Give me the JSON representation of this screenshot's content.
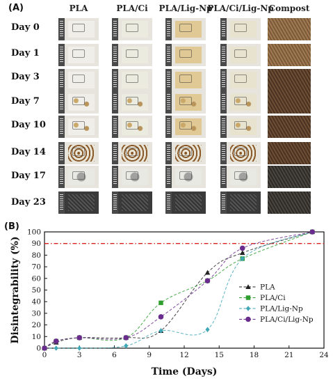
{
  "panel_a": {
    "label": "(A)",
    "columns": [
      "PLA",
      "PLA/Ci",
      "PLA/Lig-Np",
      "PLA/Ci/Lig-Np",
      "Compost"
    ],
    "days": [
      "Day 0",
      "Day 1",
      "Day 3",
      "Day 7",
      "Day 10",
      "Day 14",
      "Day 17",
      "Day 23"
    ]
  },
  "panel_b": {
    "label": "(B)"
  },
  "colors": {
    "PLA": "#222222",
    "PLA/Ci": "#2e9e2e",
    "PLA/Lig-Np": "#3fa7b5",
    "PLA/Ci/Lig-Np": "#6a2c8c",
    "threshold": "#dd2222"
  },
  "chart_data": {
    "type": "line",
    "xlabel": "Time (Days)",
    "ylabel": "Disintegrability (%)",
    "xlim": [
      0,
      24
    ],
    "ylim": [
      0,
      100
    ],
    "xticks": [
      0,
      3,
      6,
      9,
      12,
      15,
      18,
      21,
      24
    ],
    "yticks": [
      0,
      10,
      20,
      30,
      40,
      50,
      60,
      70,
      80,
      90,
      100
    ],
    "threshold": 90,
    "legend_position": "center-right",
    "series": [
      {
        "name": "PLA",
        "marker": "triangle",
        "x": [
          0,
          1,
          3,
          7,
          10,
          14,
          17,
          23
        ],
        "y": [
          0,
          5,
          9,
          9,
          15,
          65,
          82,
          100
        ]
      },
      {
        "name": "PLA/Ci",
        "marker": "square",
        "x": [
          0,
          1,
          3,
          7,
          10,
          14,
          17,
          23
        ],
        "y": [
          0,
          6,
          9,
          9,
          39,
          58,
          77,
          100
        ]
      },
      {
        "name": "PLA/Lig-Np",
        "marker": "diamond",
        "x": [
          0,
          1,
          3,
          7,
          10,
          14,
          17,
          23
        ],
        "y": [
          0,
          0,
          0,
          2,
          15,
          16,
          77,
          100
        ]
      },
      {
        "name": "PLA/Ci/Lig-Np",
        "marker": "circle",
        "x": [
          0,
          1,
          3,
          7,
          10,
          14,
          17,
          23
        ],
        "y": [
          0,
          6,
          9,
          9,
          27,
          58,
          86,
          100
        ]
      }
    ]
  }
}
